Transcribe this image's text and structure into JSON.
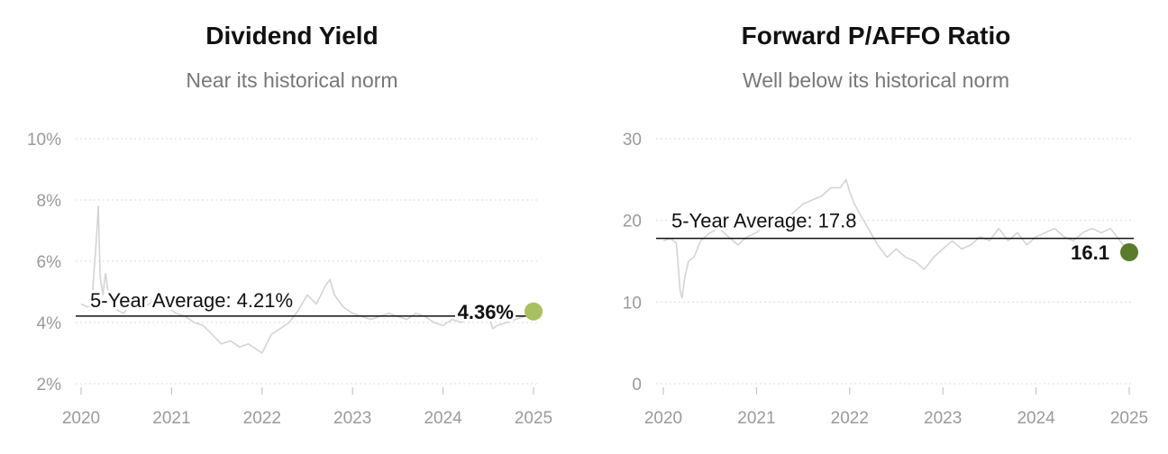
{
  "chart_data": [
    {
      "type": "line",
      "title": "Dividend Yield",
      "subtitle": "Near its historical norm",
      "y_ticks": [
        "2%",
        "4%",
        "6%",
        "8%",
        "10%"
      ],
      "y_tick_values": [
        2,
        4,
        6,
        8,
        10
      ],
      "x_ticks": [
        "2020",
        "2021",
        "2022",
        "2023",
        "2024",
        "2025"
      ],
      "x_tick_values": [
        2020,
        2021,
        2022,
        2023,
        2024,
        2025
      ],
      "ylim": [
        2,
        10
      ],
      "xlim": [
        2020,
        2025
      ],
      "grid": true,
      "average": {
        "label": "5-Year Average: 4.21%",
        "value": 4.21
      },
      "current": {
        "label": "4.36%",
        "value": 4.36,
        "x": 2025.0,
        "color": "#a8c060"
      },
      "line_color": "#d4d4d4",
      "series": [
        {
          "x": [
            2020.0,
            2020.08,
            2020.12,
            2020.17,
            2020.19,
            2020.21,
            2020.24,
            2020.27,
            2020.3,
            2020.35,
            2020.4,
            2020.47,
            2020.55,
            2020.65,
            2020.75,
            2020.85,
            2020.95,
            2021.05,
            2021.15,
            2021.25,
            2021.35,
            2021.45,
            2021.55,
            2021.65,
            2021.75,
            2021.85,
            2021.95,
            2022.0,
            2022.05,
            2022.1,
            2022.2,
            2022.3,
            2022.4,
            2022.5,
            2022.6,
            2022.7,
            2022.75,
            2022.8,
            2022.85,
            2022.9,
            2023.0,
            2023.1,
            2023.2,
            2023.3,
            2023.4,
            2023.5,
            2023.6,
            2023.7,
            2023.8,
            2023.9,
            2024.0,
            2024.1,
            2024.2,
            2024.3,
            2024.4,
            2024.5,
            2024.55,
            2024.6,
            2024.7,
            2024.8,
            2024.9,
            2025.0
          ],
          "values": [
            4.6,
            4.5,
            4.7,
            6.8,
            7.8,
            5.5,
            4.9,
            5.6,
            5.0,
            4.6,
            4.4,
            4.3,
            4.6,
            4.5,
            4.6,
            4.8,
            4.5,
            4.3,
            4.2,
            4.0,
            3.9,
            3.6,
            3.3,
            3.4,
            3.2,
            3.3,
            3.1,
            3.0,
            3.3,
            3.6,
            3.8,
            4.0,
            4.4,
            4.9,
            4.6,
            5.2,
            5.4,
            4.9,
            4.7,
            4.5,
            4.3,
            4.2,
            4.1,
            4.2,
            4.3,
            4.2,
            4.1,
            4.3,
            4.2,
            4.0,
            3.9,
            4.1,
            4.0,
            4.2,
            4.3,
            4.2,
            3.8,
            3.9,
            4.0,
            4.1,
            4.2,
            4.36
          ]
        }
      ]
    },
    {
      "type": "line",
      "title": "Forward P/AFFO Ratio",
      "subtitle": "Well below its historical norm",
      "y_ticks": [
        "0",
        "10",
        "20",
        "30"
      ],
      "y_tick_values": [
        0,
        10,
        20,
        30
      ],
      "x_ticks": [
        "2020",
        "2021",
        "2022",
        "2023",
        "2024",
        "2025"
      ],
      "x_tick_values": [
        2020,
        2021,
        2022,
        2023,
        2024,
        2025
      ],
      "ylim": [
        0,
        30
      ],
      "xlim": [
        2020,
        2025
      ],
      "grid": true,
      "average": {
        "label": "5-Year Average: 17.8",
        "value": 17.8
      },
      "current": {
        "label": "16.1",
        "value": 16.1,
        "x": 2025.0,
        "color": "#5a7a2e"
      },
      "line_color": "#d4d4d4",
      "series": [
        {
          "x": [
            2020.0,
            2020.08,
            2020.14,
            2020.18,
            2020.2,
            2020.23,
            2020.27,
            2020.33,
            2020.4,
            2020.5,
            2020.6,
            2020.7,
            2020.8,
            2020.9,
            2021.0,
            2021.1,
            2021.2,
            2021.3,
            2021.4,
            2021.5,
            2021.6,
            2021.7,
            2021.8,
            2021.9,
            2021.96,
            2022.0,
            2022.05,
            2022.1,
            2022.2,
            2022.3,
            2022.4,
            2022.5,
            2022.6,
            2022.7,
            2022.8,
            2022.9,
            2023.0,
            2023.1,
            2023.2,
            2023.3,
            2023.4,
            2023.5,
            2023.6,
            2023.7,
            2023.8,
            2023.9,
            2024.0,
            2024.1,
            2024.2,
            2024.3,
            2024.4,
            2024.5,
            2024.6,
            2024.7,
            2024.8,
            2024.9,
            2025.0
          ],
          "values": [
            17.5,
            17.8,
            17.2,
            11.5,
            10.5,
            13.0,
            15.0,
            15.5,
            17.5,
            18.5,
            19.0,
            18.0,
            17.0,
            18.0,
            18.5,
            19.5,
            20.5,
            20.0,
            21.0,
            22.0,
            22.5,
            23.0,
            24.0,
            24.0,
            25.0,
            23.5,
            22.0,
            21.0,
            19.0,
            17.0,
            15.5,
            16.5,
            15.5,
            15.0,
            14.0,
            15.5,
            16.5,
            17.5,
            16.5,
            17.0,
            18.0,
            17.5,
            19.0,
            17.5,
            18.5,
            17.0,
            18.0,
            18.5,
            19.0,
            18.0,
            17.5,
            18.5,
            19.0,
            18.5,
            19.0,
            17.5,
            16.1
          ]
        }
      ]
    }
  ]
}
